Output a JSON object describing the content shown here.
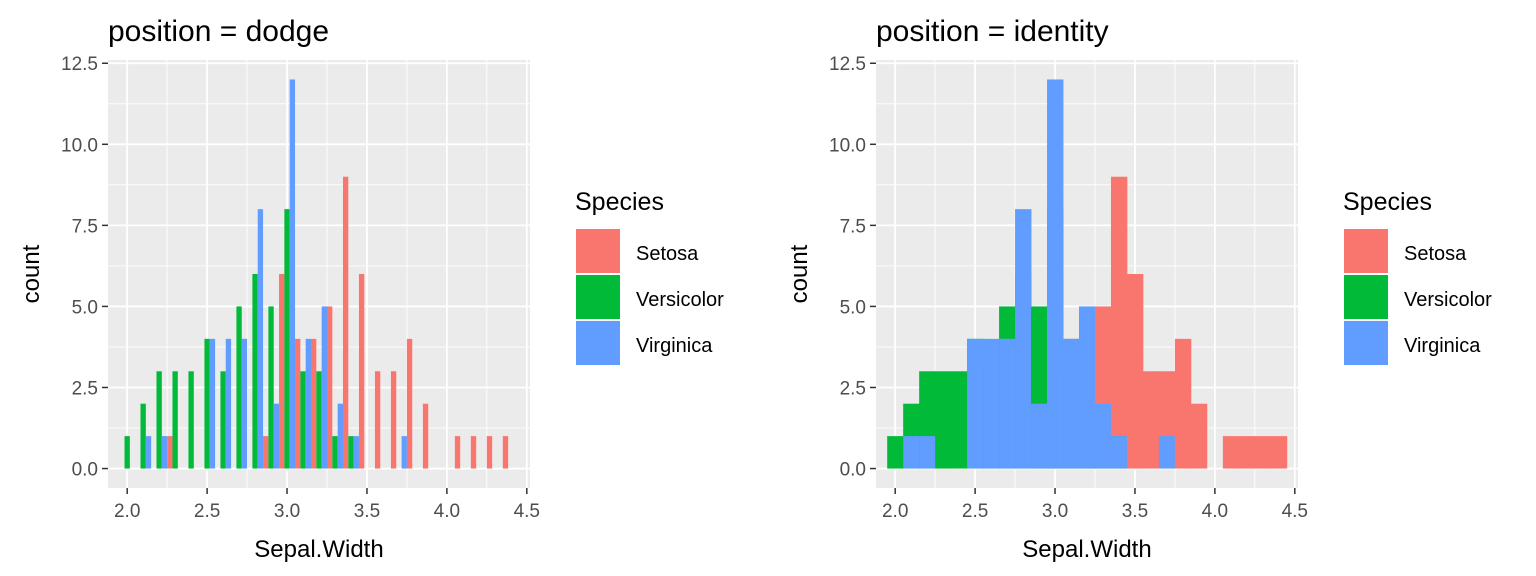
{
  "chart_data": [
    {
      "type": "histogram",
      "position": "dodge",
      "title": "position = dodge",
      "xlabel": "Sepal.Width",
      "ylabel": "count",
      "xlim": [
        1.88,
        4.52
      ],
      "ylim": [
        -0.6,
        12.6
      ],
      "binwidth": 0.1,
      "x_ticks": [
        2.0,
        2.5,
        3.0,
        3.5,
        4.0,
        4.5
      ],
      "x_tick_labels": [
        "2.0",
        "2.5",
        "3.0",
        "3.5",
        "4.0",
        "4.5"
      ],
      "y_ticks": [
        0,
        2.5,
        5,
        7.5,
        10,
        12.5
      ],
      "y_tick_labels": [
        "0.0",
        "2.5",
        "5.0",
        "7.5",
        "10.0",
        "12.5"
      ],
      "bin_centers": [
        2.0,
        2.1,
        2.2,
        2.3,
        2.4,
        2.5,
        2.6,
        2.7,
        2.8,
        2.9,
        3.0,
        3.1,
        3.2,
        3.3,
        3.4,
        3.5,
        3.6,
        3.7,
        3.8,
        3.9,
        4.0,
        4.1,
        4.2,
        4.3,
        4.4
      ],
      "series": [
        {
          "name": "Setosa",
          "color": "#F8766D",
          "values": [
            0,
            0,
            0,
            1,
            0,
            0,
            0,
            0,
            0,
            1,
            6,
            4,
            4,
            5,
            9,
            6,
            3,
            3,
            4,
            2,
            0,
            1,
            1,
            1,
            1
          ]
        },
        {
          "name": "Versicolor",
          "color": "#00BA38",
          "values": [
            1,
            2,
            3,
            3,
            3,
            4,
            3,
            5,
            6,
            5,
            8,
            3,
            3,
            1,
            1,
            0,
            0,
            0,
            0,
            0,
            0,
            0,
            0,
            0,
            0
          ]
        },
        {
          "name": "Virginica",
          "color": "#619CFF",
          "values": [
            0,
            1,
            1,
            0,
            0,
            4,
            4,
            4,
            8,
            2,
            12,
            4,
            5,
            2,
            1,
            0,
            0,
            1,
            0,
            0,
            0,
            0,
            0,
            0,
            0
          ]
        }
      ],
      "legend": {
        "title": "Species",
        "entries": [
          "Setosa",
          "Versicolor",
          "Virginica"
        ],
        "placement": "right"
      }
    },
    {
      "type": "histogram",
      "position": "identity",
      "title": "position = identity",
      "xlabel": "Sepal.Width",
      "ylabel": "count",
      "xlim": [
        1.88,
        4.52
      ],
      "ylim": [
        -0.6,
        12.6
      ],
      "binwidth": 0.1,
      "x_ticks": [
        2.0,
        2.5,
        3.0,
        3.5,
        4.0,
        4.5
      ],
      "x_tick_labels": [
        "2.0",
        "2.5",
        "3.0",
        "3.5",
        "4.0",
        "4.5"
      ],
      "y_ticks": [
        0,
        2.5,
        5,
        7.5,
        10,
        12.5
      ],
      "y_tick_labels": [
        "0.0",
        "2.5",
        "5.0",
        "7.5",
        "10.0",
        "12.5"
      ],
      "bin_centers": [
        2.0,
        2.1,
        2.2,
        2.3,
        2.4,
        2.5,
        2.6,
        2.7,
        2.8,
        2.9,
        3.0,
        3.1,
        3.2,
        3.3,
        3.4,
        3.5,
        3.6,
        3.7,
        3.8,
        3.9,
        4.0,
        4.1,
        4.2,
        4.3,
        4.4
      ],
      "series": [
        {
          "name": "Setosa",
          "color": "#F8766D",
          "values": [
            0,
            0,
            0,
            1,
            0,
            0,
            0,
            0,
            0,
            1,
            6,
            4,
            4,
            5,
            9,
            6,
            3,
            3,
            4,
            2,
            0,
            1,
            1,
            1,
            1
          ]
        },
        {
          "name": "Versicolor",
          "color": "#00BA38",
          "values": [
            1,
            2,
            3,
            3,
            3,
            4,
            3,
            5,
            6,
            5,
            8,
            3,
            3,
            1,
            1,
            0,
            0,
            0,
            0,
            0,
            0,
            0,
            0,
            0,
            0
          ]
        },
        {
          "name": "Virginica",
          "color": "#619CFF",
          "values": [
            0,
            1,
            1,
            0,
            0,
            4,
            4,
            4,
            8,
            2,
            12,
            4,
            5,
            2,
            1,
            0,
            0,
            1,
            0,
            0,
            0,
            0,
            0,
            0,
            0
          ]
        }
      ],
      "legend": {
        "title": "Species",
        "entries": [
          "Setosa",
          "Versicolor",
          "Virginica"
        ],
        "placement": "right"
      }
    }
  ],
  "theme": {
    "panel_bg": "#EBEBEB",
    "grid_color": "#FFFFFF",
    "tick_color": "#333333"
  }
}
